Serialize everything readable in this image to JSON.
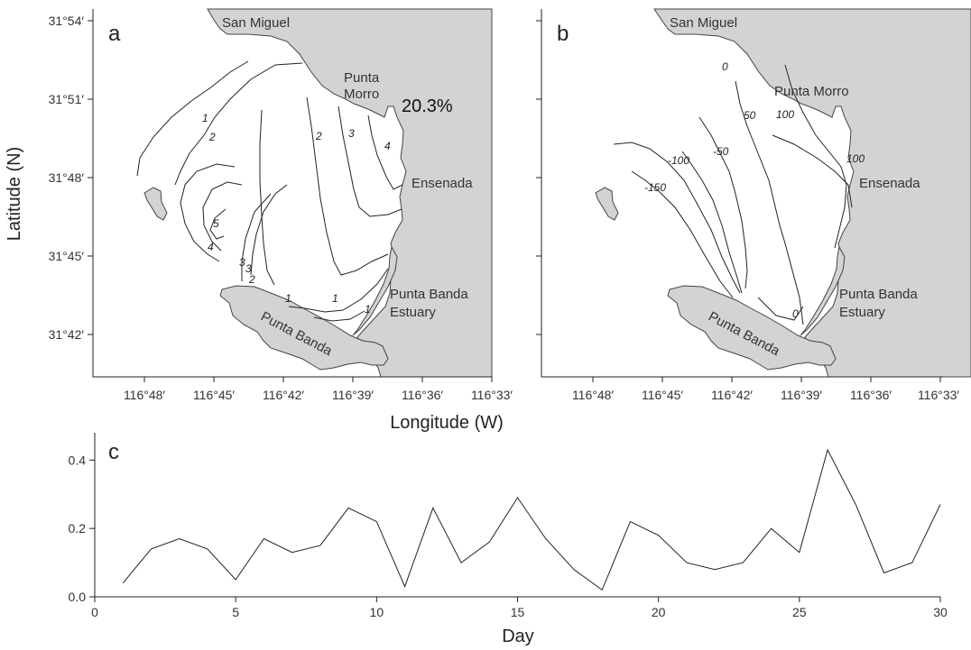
{
  "maps": {
    "a": {
      "letter": "a",
      "percent": "20.3%",
      "contour_labels": [
        "1",
        "2",
        "3",
        "4",
        "5",
        "1",
        "2",
        "3",
        "4",
        "1",
        "2",
        "3",
        "1"
      ]
    },
    "b": {
      "letter": "b",
      "contour_labels": [
        "0",
        "50",
        "100",
        "100",
        "-50",
        "-100",
        "-150",
        "0"
      ]
    },
    "places": {
      "san_miguel": "San Miguel",
      "punta_morro_1": "Punta",
      "punta_morro_2": "Morro",
      "punta_morro": "Punta Morro",
      "ensenada": "Ensenada",
      "estuary_1": "Punta Banda",
      "estuary_2": "Estuary",
      "punta_banda": "Punta Banda"
    },
    "lat_ticks": [
      "31°54′",
      "31°51′",
      "31°48′",
      "31°45′",
      "31°42′"
    ],
    "lon_ticks": [
      "116°48′",
      "116°45′",
      "116°42′",
      "116°39′",
      "116°36′",
      "116°33′"
    ],
    "ylabel": "Latitude (N)",
    "xlabel": "Longitude (W)"
  },
  "chart_data": {
    "type": "line",
    "panel_letter": "c",
    "xlabel": "Day",
    "ylabel": "",
    "xlim": [
      0,
      30
    ],
    "ylim": [
      0.0,
      0.48
    ],
    "xticks": [
      0,
      5,
      10,
      15,
      20,
      25,
      30
    ],
    "yticks": [
      0.0,
      0.2,
      0.4
    ],
    "xtick_labels": [
      "0",
      "5",
      "10",
      "15",
      "20",
      "25",
      "30"
    ],
    "ytick_labels": [
      "0.0",
      "0.2",
      "0.4"
    ],
    "x": [
      1,
      2,
      3,
      4,
      5,
      6,
      7,
      8,
      9,
      10,
      11,
      12,
      13,
      14,
      15,
      16,
      17,
      18,
      19,
      20,
      21,
      22,
      23,
      24,
      25,
      26,
      27,
      28,
      29,
      30
    ],
    "y": [
      0.04,
      0.14,
      0.17,
      0.14,
      0.05,
      0.17,
      0.13,
      0.15,
      0.26,
      0.22,
      0.03,
      0.26,
      0.1,
      0.16,
      0.29,
      0.17,
      0.08,
      0.02,
      0.22,
      0.18,
      0.1,
      0.08,
      0.1,
      0.2,
      0.13,
      0.43,
      0.27,
      0.07,
      0.1,
      0.27
    ]
  }
}
